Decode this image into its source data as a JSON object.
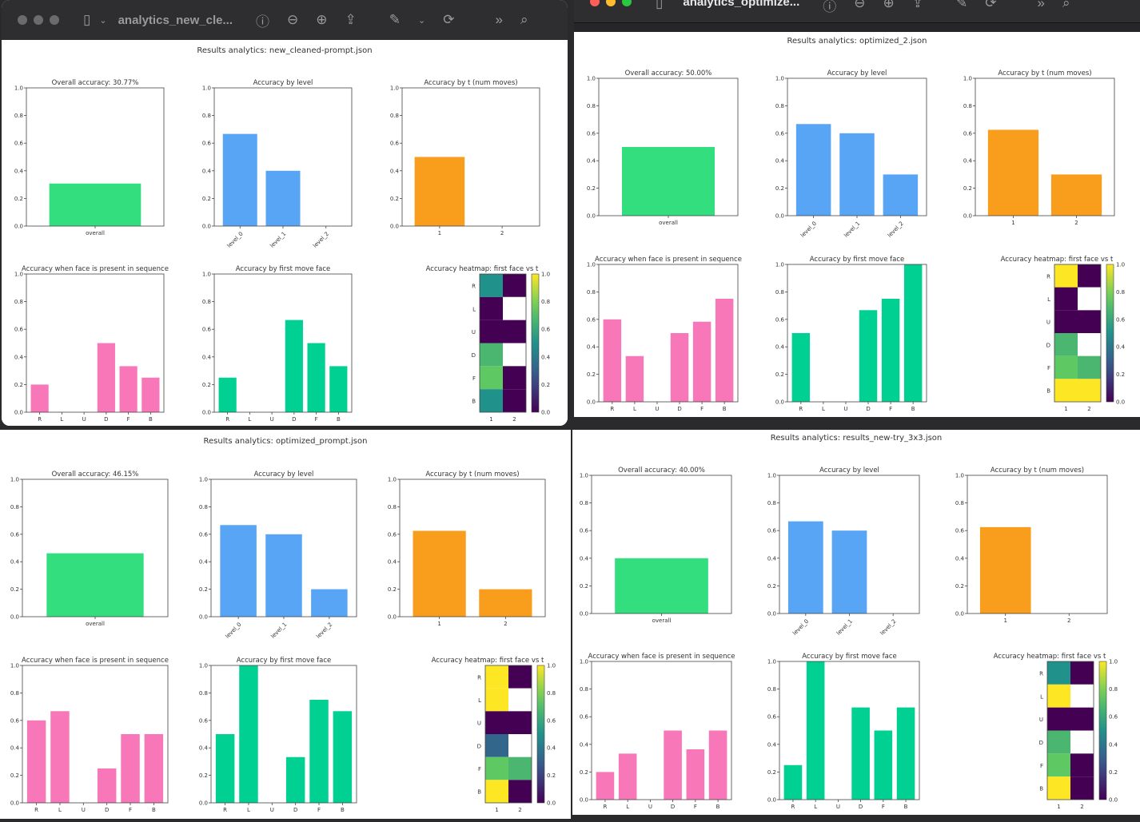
{
  "colors": {
    "overall": "#33de7f",
    "level": "#58a5f5",
    "t": "#f99d1c",
    "face_present": "#f877b8",
    "first_move": "#00d092",
    "nan_cell": "#ffffff"
  },
  "windows": [
    {
      "title": "analytics_new_cle...",
      "traffic_lights": [
        "#6b6b6d",
        "#6b6b6d",
        "#6b6b6d"
      ],
      "icons": [
        "sidebar-icon",
        "chevron-down-icon",
        "info-icon",
        "zoom-out-icon",
        "zoom-in-icon",
        "share-icon",
        "markup-icon",
        "chevron-down-icon",
        "rotate-icon",
        "more-icon",
        "search-icon"
      ]
    },
    {
      "title": "analytics_optimize...",
      "traffic_lights": [
        "#ff5f57",
        "#febc2e",
        "#28c840"
      ],
      "icons": [
        "sidebar-icon",
        "chevron-down-icon",
        "info-icon",
        "zoom-out-icon",
        "zoom-in-icon",
        "share-icon",
        "markup-icon",
        "chevron-down-icon",
        "rotate-icon",
        "more-icon",
        "search-icon"
      ]
    }
  ],
  "chart_data": [
    {
      "title": "Results analytics: new_cleaned-prompt.json",
      "overall": {
        "type": "bar",
        "title": "Overall accuracy: 30.77%",
        "categories": [
          "overall"
        ],
        "values": [
          0.3077
        ],
        "ylim": [
          0,
          1
        ]
      },
      "level": {
        "type": "bar",
        "title": "Accuracy by level",
        "categories": [
          "level_0",
          "level_1",
          "level_2"
        ],
        "values": [
          0.667,
          0.4,
          0
        ],
        "ylim": [
          0,
          1
        ]
      },
      "t": {
        "type": "bar",
        "title": "Accuracy by t (num moves)",
        "categories": [
          "1",
          "2"
        ],
        "values": [
          0.5,
          0
        ],
        "ylim": [
          0,
          1
        ]
      },
      "face_present": {
        "type": "bar",
        "title": "Accuracy when face is present in sequence",
        "categories": [
          "R",
          "L",
          "U",
          "D",
          "F",
          "B"
        ],
        "values": [
          0.2,
          0,
          0,
          0.5,
          0.333,
          0.25
        ],
        "ylim": [
          0,
          1
        ]
      },
      "first_move": {
        "type": "bar",
        "title": "Accuracy by first move face",
        "categories": [
          "R",
          "L",
          "U",
          "D",
          "F",
          "B"
        ],
        "values": [
          0.25,
          0,
          0,
          0.667,
          0.5,
          0.333
        ],
        "ylim": [
          0,
          1
        ]
      },
      "heatmap": {
        "type": "heatmap",
        "title": "Accuracy heatmap: first face vs t",
        "rows": [
          "R",
          "L",
          "U",
          "D",
          "F",
          "B"
        ],
        "cols": [
          "1",
          "2"
        ],
        "values": [
          [
            0.5,
            0
          ],
          [
            0,
            null
          ],
          [
            0,
            0
          ],
          [
            0.667,
            null
          ],
          [
            0.75,
            0
          ],
          [
            0.5,
            0
          ]
        ],
        "colorbar_ticks": [
          "0.0",
          "0.2",
          "0.4",
          "0.6",
          "0.8",
          "1.0"
        ],
        "colormap": "viridis"
      }
    },
    {
      "title": "Results analytics: optimized_2.json",
      "overall": {
        "type": "bar",
        "title": "Overall accuracy: 50.00%",
        "categories": [
          "overall"
        ],
        "values": [
          0.5
        ],
        "ylim": [
          0,
          1
        ]
      },
      "level": {
        "type": "bar",
        "title": "Accuracy by level",
        "categories": [
          "level_0",
          "level_1",
          "level_2"
        ],
        "values": [
          0.667,
          0.6,
          0.3
        ],
        "ylim": [
          0,
          1
        ]
      },
      "t": {
        "type": "bar",
        "title": "Accuracy by t (num moves)",
        "categories": [
          "1",
          "2"
        ],
        "values": [
          0.625,
          0.3
        ],
        "ylim": [
          0,
          1
        ]
      },
      "face_present": {
        "type": "bar",
        "title": "Accuracy when face is present in sequence",
        "categories": [
          "R",
          "L",
          "U",
          "D",
          "F",
          "B"
        ],
        "values": [
          0.6,
          0.333,
          0,
          0.5,
          0.583,
          0.75
        ],
        "ylim": [
          0,
          1
        ]
      },
      "first_move": {
        "type": "bar",
        "title": "Accuracy by first move face",
        "categories": [
          "R",
          "L",
          "U",
          "D",
          "F",
          "B"
        ],
        "values": [
          0.5,
          0,
          0,
          0.667,
          0.75,
          1.0
        ],
        "ylim": [
          0,
          1
        ]
      },
      "heatmap": {
        "type": "heatmap",
        "title": "Accuracy heatmap: first face vs t",
        "rows": [
          "R",
          "L",
          "U",
          "D",
          "F",
          "B"
        ],
        "cols": [
          "1",
          "2"
        ],
        "values": [
          [
            1,
            0
          ],
          [
            0,
            null
          ],
          [
            0,
            0
          ],
          [
            0.667,
            null
          ],
          [
            0.75,
            0.667
          ],
          [
            1,
            1
          ]
        ],
        "colorbar_ticks": [
          "0.0",
          "0.2",
          "0.4",
          "0.6",
          "0.8",
          "1.0"
        ],
        "colormap": "viridis"
      }
    },
    {
      "title": "Results analytics: optimized_prompt.json",
      "overall": {
        "type": "bar",
        "title": "Overall accuracy: 46.15%",
        "categories": [
          "overall"
        ],
        "values": [
          0.4615
        ],
        "ylim": [
          0,
          1
        ]
      },
      "level": {
        "type": "bar",
        "title": "Accuracy by level",
        "categories": [
          "level_0",
          "level_1",
          "level_2"
        ],
        "values": [
          0.667,
          0.6,
          0.2
        ],
        "ylim": [
          0,
          1
        ]
      },
      "t": {
        "type": "bar",
        "title": "Accuracy by t (num moves)",
        "categories": [
          "1",
          "2"
        ],
        "values": [
          0.625,
          0.2
        ],
        "ylim": [
          0,
          1
        ]
      },
      "face_present": {
        "type": "bar",
        "title": "Accuracy when face is present in sequence",
        "categories": [
          "R",
          "L",
          "U",
          "D",
          "F",
          "B"
        ],
        "values": [
          0.6,
          0.667,
          0,
          0.25,
          0.5,
          0.5
        ],
        "ylim": [
          0,
          1
        ]
      },
      "first_move": {
        "type": "bar",
        "title": "Accuracy by first move face",
        "categories": [
          "R",
          "L",
          "U",
          "D",
          "F",
          "B"
        ],
        "values": [
          0.5,
          1.0,
          0,
          0.333,
          0.75,
          0.667
        ],
        "ylim": [
          0,
          1
        ]
      },
      "heatmap": {
        "type": "heatmap",
        "title": "Accuracy heatmap: first face vs t",
        "rows": [
          "R",
          "L",
          "U",
          "D",
          "F",
          "B"
        ],
        "cols": [
          "1",
          "2"
        ],
        "values": [
          [
            1,
            0
          ],
          [
            1,
            null
          ],
          [
            0,
            0
          ],
          [
            0.333,
            null
          ],
          [
            0.75,
            0.667
          ],
          [
            1,
            0
          ]
        ],
        "colorbar_ticks": [
          "0.0",
          "0.2",
          "0.4",
          "0.6",
          "0.8",
          "1.0"
        ],
        "colormap": "viridis"
      }
    },
    {
      "title": "Results analytics: results_new-try_3x3.json",
      "overall": {
        "type": "bar",
        "title": "Overall accuracy: 40.00%",
        "categories": [
          "overall"
        ],
        "values": [
          0.4
        ],
        "ylim": [
          0,
          1
        ]
      },
      "level": {
        "type": "bar",
        "title": "Accuracy by level",
        "categories": [
          "level_0",
          "level_1",
          "level_2"
        ],
        "values": [
          0.667,
          0.6,
          0
        ],
        "ylim": [
          0,
          1
        ]
      },
      "t": {
        "type": "bar",
        "title": "Accuracy by t (num moves)",
        "categories": [
          "1",
          "2"
        ],
        "values": [
          0.625,
          0
        ],
        "ylim": [
          0,
          1
        ]
      },
      "face_present": {
        "type": "bar",
        "title": "Accuracy when face is present in sequence",
        "categories": [
          "R",
          "L",
          "U",
          "D",
          "F",
          "B"
        ],
        "values": [
          0.2,
          0.333,
          0,
          0.5,
          0.364,
          0.5
        ],
        "ylim": [
          0,
          1
        ]
      },
      "first_move": {
        "type": "bar",
        "title": "Accuracy by first move face",
        "categories": [
          "R",
          "L",
          "U",
          "D",
          "F",
          "B"
        ],
        "values": [
          0.25,
          1.0,
          0,
          0.667,
          0.5,
          0.667
        ],
        "ylim": [
          0,
          1
        ]
      },
      "heatmap": {
        "type": "heatmap",
        "title": "Accuracy heatmap: first face vs t",
        "rows": [
          "R",
          "L",
          "U",
          "D",
          "F",
          "B"
        ],
        "cols": [
          "1",
          "2"
        ],
        "values": [
          [
            0.5,
            0
          ],
          [
            1,
            null
          ],
          [
            0,
            0
          ],
          [
            0.667,
            null
          ],
          [
            0.75,
            0
          ],
          [
            1,
            0
          ]
        ],
        "colorbar_ticks": [
          "0.0",
          "0.2",
          "0.4",
          "0.6",
          "0.8",
          "1.0"
        ],
        "colormap": "viridis"
      }
    }
  ]
}
